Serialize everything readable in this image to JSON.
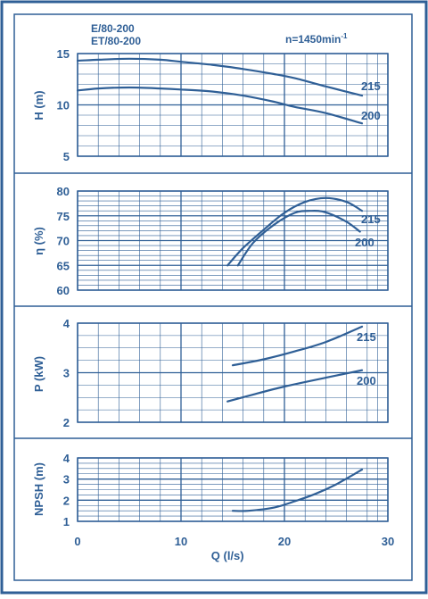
{
  "header": {
    "models": [
      "E/80-200",
      "ET/80-200"
    ],
    "speed": "n=1450min",
    "speed_exp": "-1"
  },
  "colors": {
    "frame": "#2f5f96",
    "grid": "#2f5f96",
    "curve": "#2f5f96",
    "text": "#2f5f96",
    "background": "#ffffff"
  },
  "chart_data": [
    {
      "type": "line",
      "ylabel": "H (m)",
      "xlim": [
        0,
        30
      ],
      "ylim": [
        5,
        15
      ],
      "y_ticks": [
        5,
        10,
        15
      ],
      "series": [
        {
          "name": "215",
          "x": [
            0,
            2,
            5,
            8,
            10,
            13,
            16,
            19,
            21,
            24,
            27.5
          ],
          "y": [
            14.3,
            14.4,
            14.5,
            14.4,
            14.2,
            13.9,
            13.5,
            13.0,
            12.6,
            11.8,
            10.9
          ]
        },
        {
          "name": "200",
          "x": [
            0,
            2,
            5,
            8,
            10,
            13,
            16,
            19,
            21,
            24,
            27.5
          ],
          "y": [
            11.4,
            11.6,
            11.7,
            11.6,
            11.5,
            11.3,
            10.9,
            10.3,
            9.8,
            9.2,
            8.2
          ]
        }
      ]
    },
    {
      "type": "line",
      "ylabel": "η (%)",
      "xlim": [
        0,
        30
      ],
      "ylim": [
        60,
        80
      ],
      "y_ticks": [
        60,
        65,
        70,
        75,
        80
      ],
      "series": [
        {
          "name": "215",
          "x": [
            14.5,
            16,
            18,
            20,
            22,
            24,
            26,
            27.5
          ],
          "y": [
            65,
            68.5,
            72.2,
            75.6,
            77.8,
            78.6,
            77.8,
            76.0
          ]
        },
        {
          "name": "200",
          "x": [
            15.5,
            17,
            19,
            21,
            22.5,
            24,
            26,
            27.3
          ],
          "y": [
            65,
            69.6,
            73.2,
            75.6,
            76.0,
            75.7,
            73.8,
            71.8
          ]
        }
      ]
    },
    {
      "type": "line",
      "ylabel": "P (kW)",
      "xlim": [
        0,
        30
      ],
      "ylim": [
        2,
        4
      ],
      "y_ticks": [
        2,
        3,
        4
      ],
      "series": [
        {
          "name": "215",
          "x": [
            15,
            18,
            21,
            24,
            27.5
          ],
          "y": [
            3.15,
            3.27,
            3.43,
            3.62,
            3.93
          ]
        },
        {
          "name": "200",
          "x": [
            14.5,
            17,
            20,
            24,
            27.5
          ],
          "y": [
            2.42,
            2.56,
            2.72,
            2.9,
            3.05
          ]
        }
      ]
    },
    {
      "type": "line",
      "ylabel": "NPSH (m)",
      "xlim": [
        0,
        30
      ],
      "ylim": [
        1,
        4
      ],
      "y_ticks": [
        1,
        2,
        3,
        4
      ],
      "xlabel": "Q (l/s)",
      "x_ticks": [
        0,
        10,
        20,
        30
      ],
      "series": [
        {
          "name": "",
          "x": [
            15,
            16.5,
            19,
            21,
            23,
            25,
            27.5
          ],
          "y": [
            1.5,
            1.5,
            1.65,
            1.95,
            2.3,
            2.75,
            3.45
          ]
        }
      ]
    }
  ]
}
